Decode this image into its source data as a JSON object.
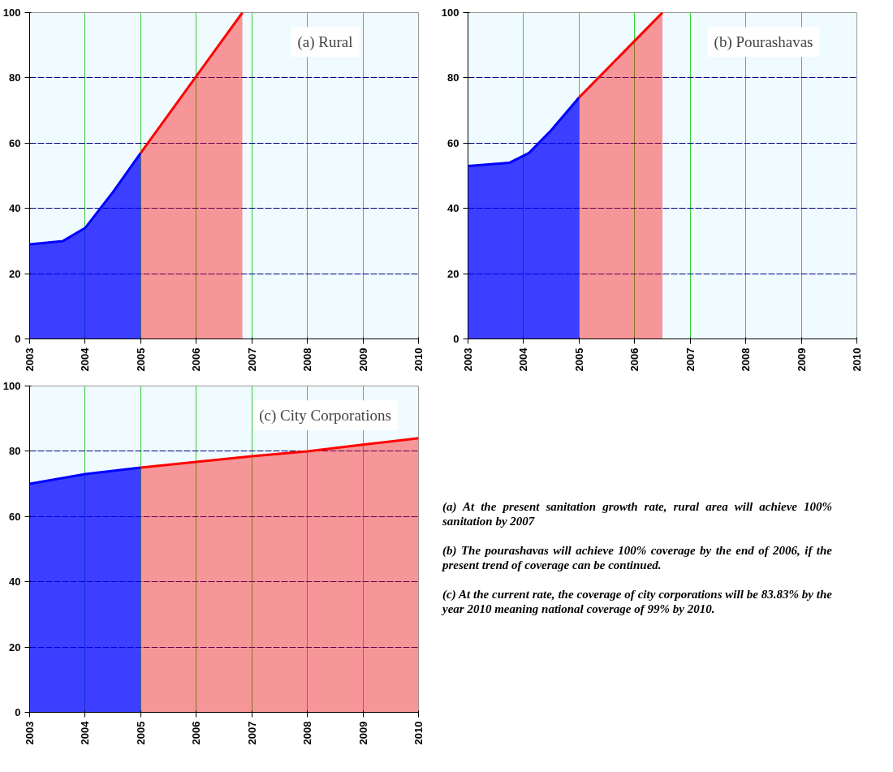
{
  "chart_data": [
    {
      "type": "area",
      "title": "(a) Rural",
      "xlim": [
        2003,
        2010
      ],
      "ylim": [
        0,
        100
      ],
      "xticks": [
        2003,
        2004,
        2005,
        2006,
        2007,
        2008,
        2009,
        2010
      ],
      "yticks": [
        0,
        20,
        40,
        60,
        80,
        100
      ],
      "grid": true,
      "series": [
        {
          "color": "#0000ff",
          "x": [
            2003,
            2003.6,
            2004,
            2004.5,
            2005
          ],
          "values": [
            29,
            30,
            34,
            45,
            57
          ]
        },
        {
          "color": "#ff0000",
          "x": [
            2005,
            2006.83
          ],
          "values": [
            57,
            100
          ]
        }
      ]
    },
    {
      "type": "area",
      "title": "(b) Pourashavas",
      "xlim": [
        2003,
        2010
      ],
      "ylim": [
        0,
        100
      ],
      "xticks": [
        2003,
        2004,
        2005,
        2006,
        2007,
        2008,
        2009,
        2010
      ],
      "yticks": [
        0,
        20,
        40,
        60,
        80,
        100
      ],
      "grid": true,
      "series": [
        {
          "color": "#0000ff",
          "x": [
            2003,
            2003.75,
            2004.1,
            2004.5,
            2005
          ],
          "values": [
            53,
            54,
            57,
            64,
            74
          ]
        },
        {
          "color": "#ff0000",
          "x": [
            2005,
            2006.5
          ],
          "values": [
            74,
            100
          ]
        }
      ]
    },
    {
      "type": "area",
      "title": "(c) City Corporations",
      "xlim": [
        2003,
        2010
      ],
      "ylim": [
        0,
        100
      ],
      "xticks": [
        2003,
        2004,
        2005,
        2006,
        2007,
        2008,
        2009,
        2010
      ],
      "yticks": [
        0,
        20,
        40,
        60,
        80,
        100
      ],
      "grid": true,
      "series": [
        {
          "color": "#0000ff",
          "x": [
            2003,
            2004,
            2005
          ],
          "values": [
            70,
            73,
            75
          ]
        },
        {
          "color": "#ff0000",
          "x": [
            2005,
            2007,
            2008,
            2009,
            2010
          ],
          "values": [
            75,
            78.5,
            80,
            82,
            84
          ]
        }
      ]
    },
    {
      "type": "other",
      "annotations": [
        "(a) At the present sanitation growth rate, rural area will achieve 100% sanitation by 2007",
        "(b) The pourashavas will achieve 100% coverage by the end of 2006, if the present trend of coverage can be continued.",
        "(c) At the current rate, the coverage of city corporations will be 83.83% by the year 2010 meaning national coverage of 99% by 2010."
      ]
    }
  ]
}
